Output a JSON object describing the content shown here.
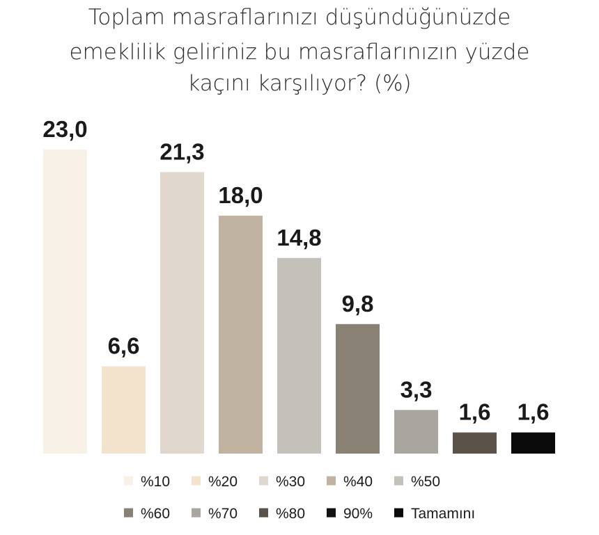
{
  "chart_data": {
    "type": "bar",
    "title_lines": [
      "Toplam masraflarınızı düşündüğünüzde",
      "emeklilik geliriniz bu masraflarınızın yüzde",
      "kaçını karşılıyor? (%)"
    ],
    "categories": [
      "%10",
      "%20",
      "%30",
      "%40",
      "%50",
      "%60",
      "%70",
      "%80",
      "90%",
      "Tamamını"
    ],
    "values": [
      23.0,
      6.6,
      21.3,
      18.0,
      14.8,
      9.8,
      3.3,
      1.6,
      null,
      1.6
    ],
    "value_labels": [
      "23,0",
      "6,6",
      "21,3",
      "18,0",
      "14,8",
      "9,8",
      "3,3",
      "1,6",
      "",
      "1,6"
    ],
    "colors": [
      "#f8f1e7",
      "#f3e2cc",
      "#e0d8cf",
      "#c1b3a1",
      "#c4c0ba",
      "#8a8175",
      "#a9a6a0",
      "#5b524a",
      "#121212",
      "#0a0a0a"
    ],
    "xlabel": "",
    "ylabel": "",
    "grid": false,
    "legend_position": "bottom"
  }
}
